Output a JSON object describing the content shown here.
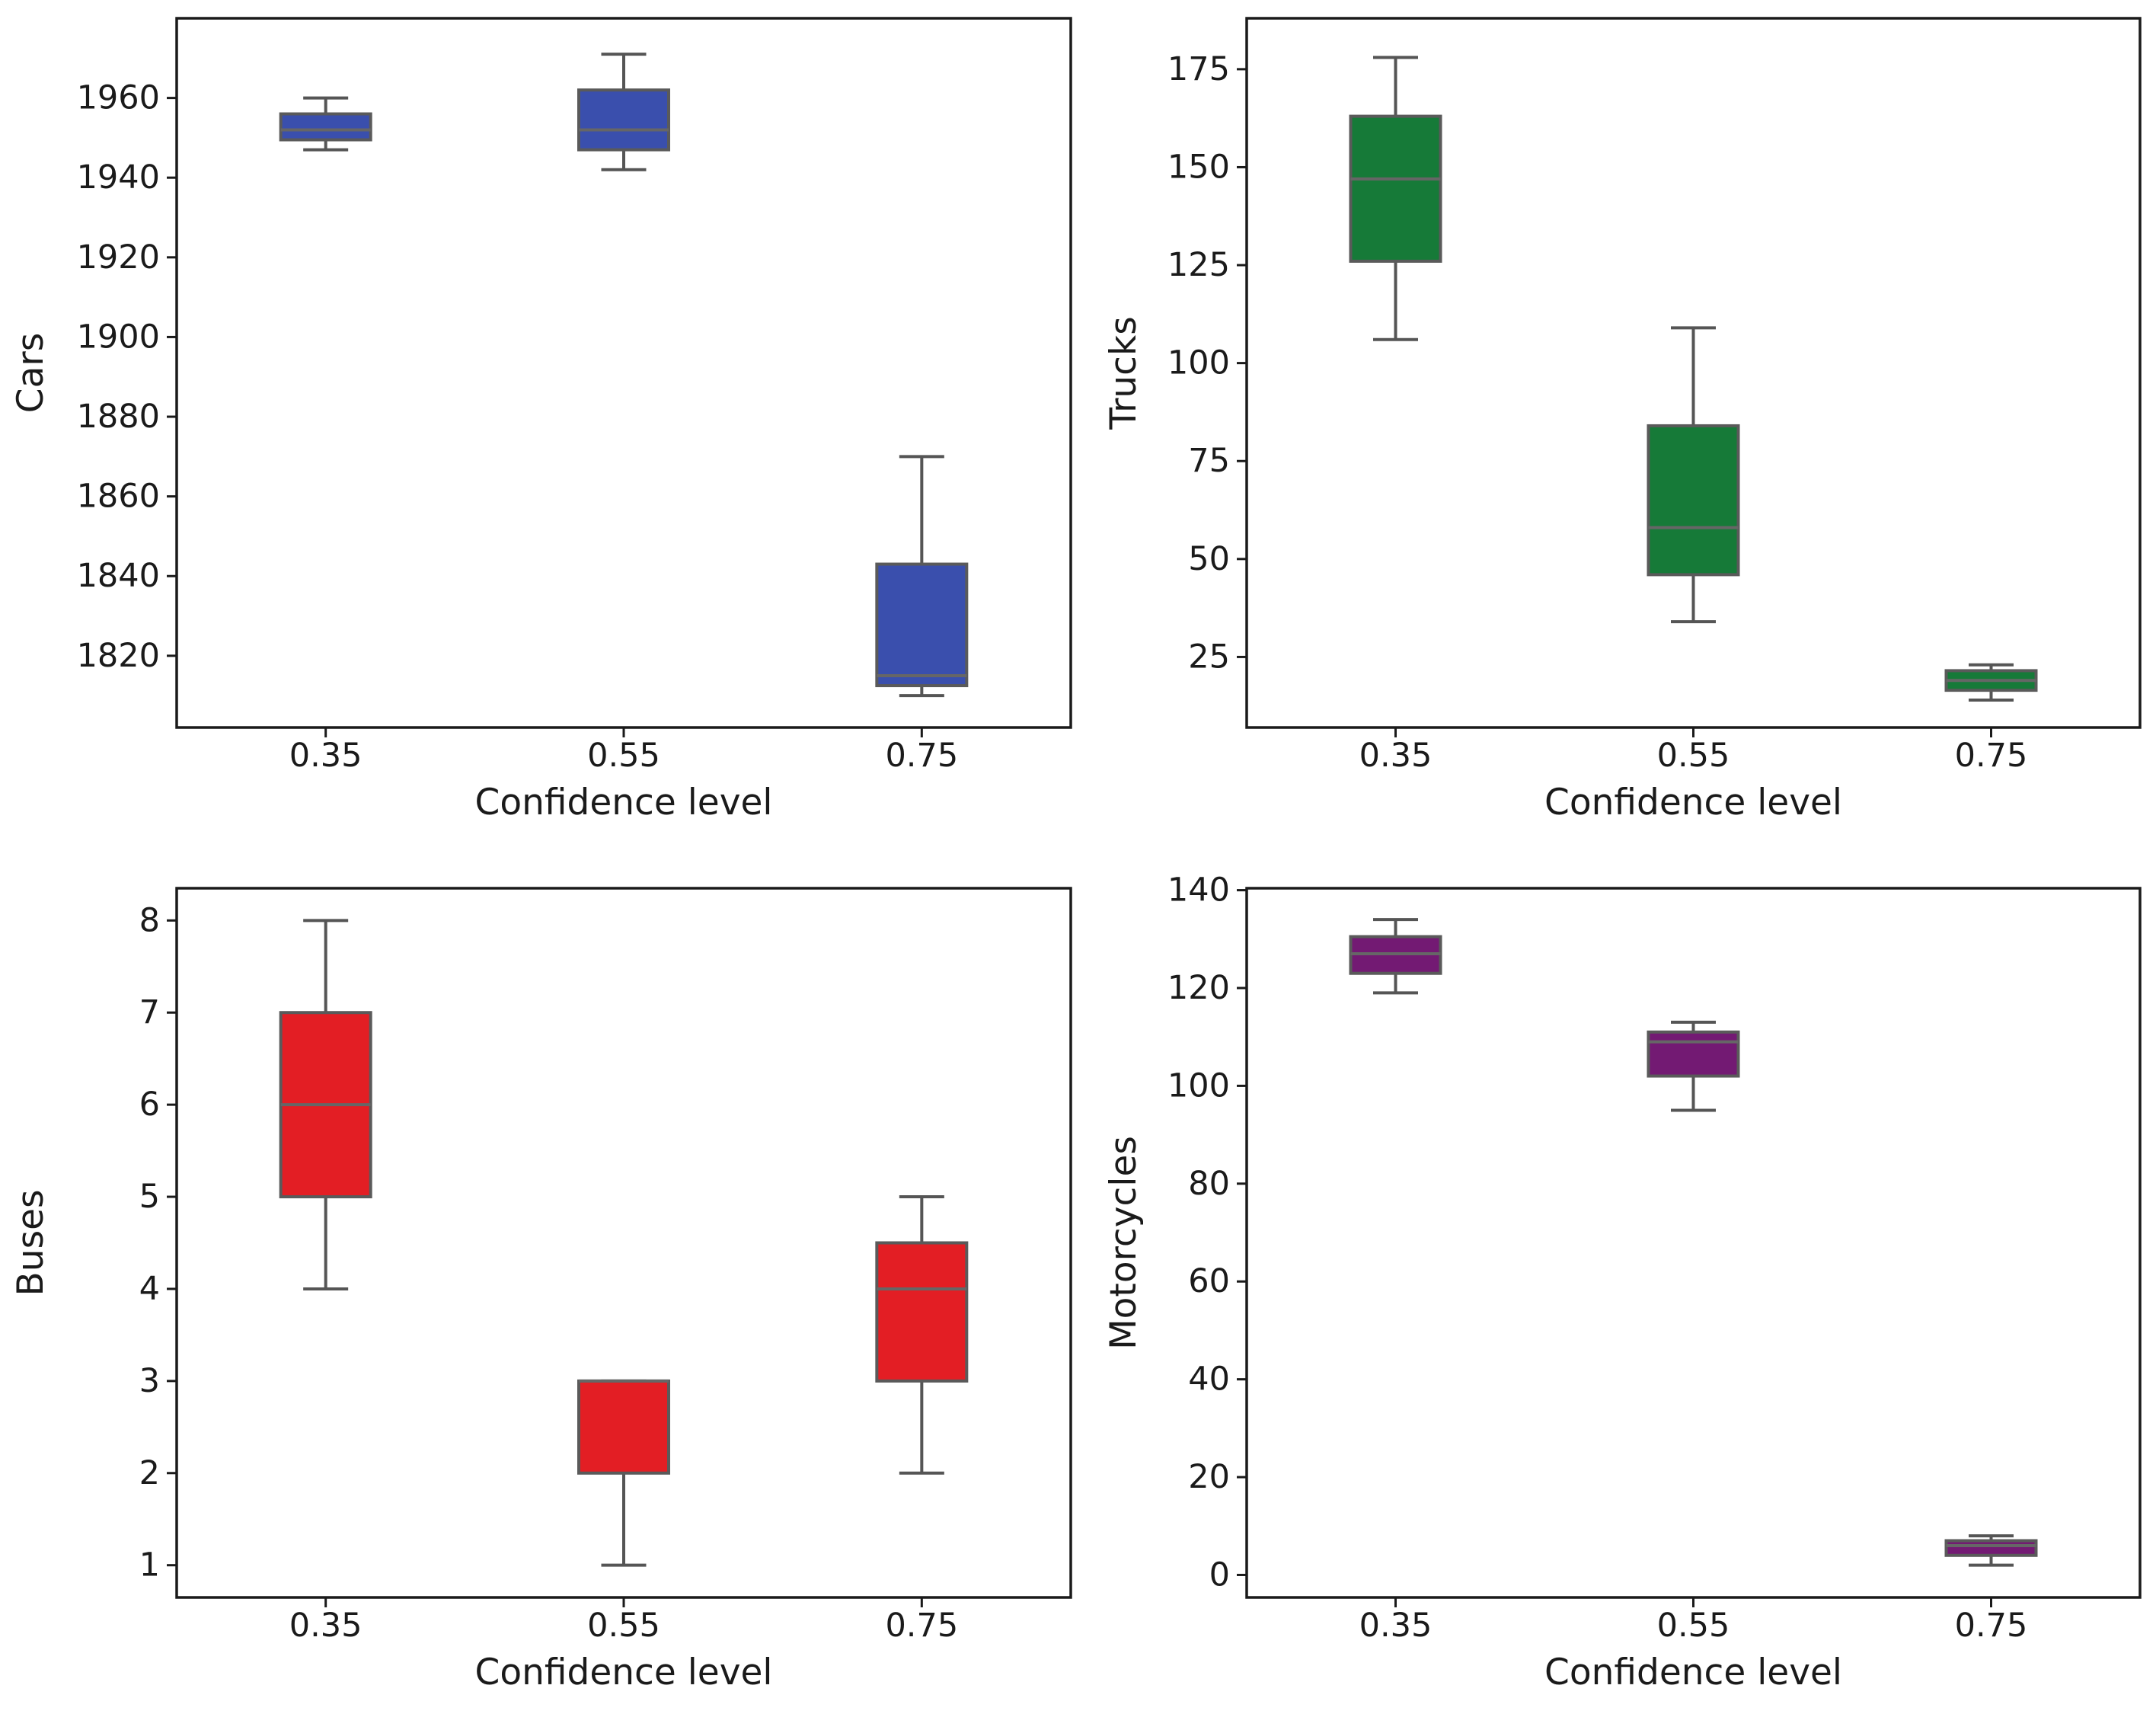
{
  "chart_data": [
    {
      "type": "box",
      "panel": "top-left",
      "xlabel": "Confidence level",
      "ylabel": "Cars",
      "categories": [
        "0.35",
        "0.55",
        "0.75"
      ],
      "ylim": [
        1802,
        1980
      ],
      "yticks": [
        1820,
        1840,
        1860,
        1880,
        1900,
        1920,
        1940,
        1960
      ],
      "color": "#3a4fad",
      "boxes": [
        {
          "whislo": 1947,
          "q1": 1949.5,
          "med": 1952,
          "q3": 1956,
          "whishi": 1960
        },
        {
          "whislo": 1942,
          "q1": 1947,
          "med": 1952,
          "q3": 1962,
          "whishi": 1971
        },
        {
          "whislo": 1810,
          "q1": 1812.5,
          "med": 1815,
          "q3": 1843,
          "whishi": 1870
        }
      ]
    },
    {
      "type": "box",
      "panel": "top-right",
      "xlabel": "Confidence level",
      "ylabel": "Trucks",
      "categories": [
        "0.35",
        "0.55",
        "0.75"
      ],
      "ylim": [
        7,
        188
      ],
      "yticks": [
        25,
        50,
        75,
        100,
        125,
        150,
        175
      ],
      "color": "#167a38",
      "boxes": [
        {
          "whislo": 106,
          "q1": 126,
          "med": 147,
          "q3": 163,
          "whishi": 178
        },
        {
          "whislo": 34,
          "q1": 46,
          "med": 58,
          "q3": 84,
          "whishi": 109
        },
        {
          "whislo": 14,
          "q1": 16.5,
          "med": 19,
          "q3": 21.5,
          "whishi": 23
        }
      ]
    },
    {
      "type": "box",
      "panel": "bottom-left",
      "xlabel": "Confidence level",
      "ylabel": "Buses",
      "categories": [
        "0.35",
        "0.55",
        "0.75"
      ],
      "ylim": [
        0.65,
        8.35
      ],
      "yticks": [
        1,
        2,
        3,
        4,
        5,
        6,
        7,
        8
      ],
      "color": "#e31e24",
      "boxes": [
        {
          "whislo": 4,
          "q1": 5,
          "med": 6,
          "q3": 7,
          "whishi": 8
        },
        {
          "whislo": 1,
          "q1": 2,
          "med": 3,
          "q3": 3,
          "whishi": 3
        },
        {
          "whislo": 2,
          "q1": 3,
          "med": 4,
          "q3": 4.5,
          "whishi": 5
        }
      ]
    },
    {
      "type": "box",
      "panel": "bottom-right",
      "xlabel": "Confidence level",
      "ylabel": "Motorcycles",
      "categories": [
        "0.35",
        "0.55",
        "0.75"
      ],
      "ylim": [
        -4.6,
        140.4
      ],
      "yticks": [
        0,
        20,
        40,
        60,
        80,
        100,
        120,
        140
      ],
      "color": "#731a73",
      "boxes": [
        {
          "whislo": 119,
          "q1": 123,
          "med": 127,
          "q3": 130.5,
          "whishi": 134
        },
        {
          "whislo": 95,
          "q1": 102,
          "med": 109,
          "q3": 111,
          "whishi": 113
        },
        {
          "whislo": 2,
          "q1": 4,
          "med": 6,
          "q3": 7,
          "whishi": 8
        }
      ]
    }
  ]
}
